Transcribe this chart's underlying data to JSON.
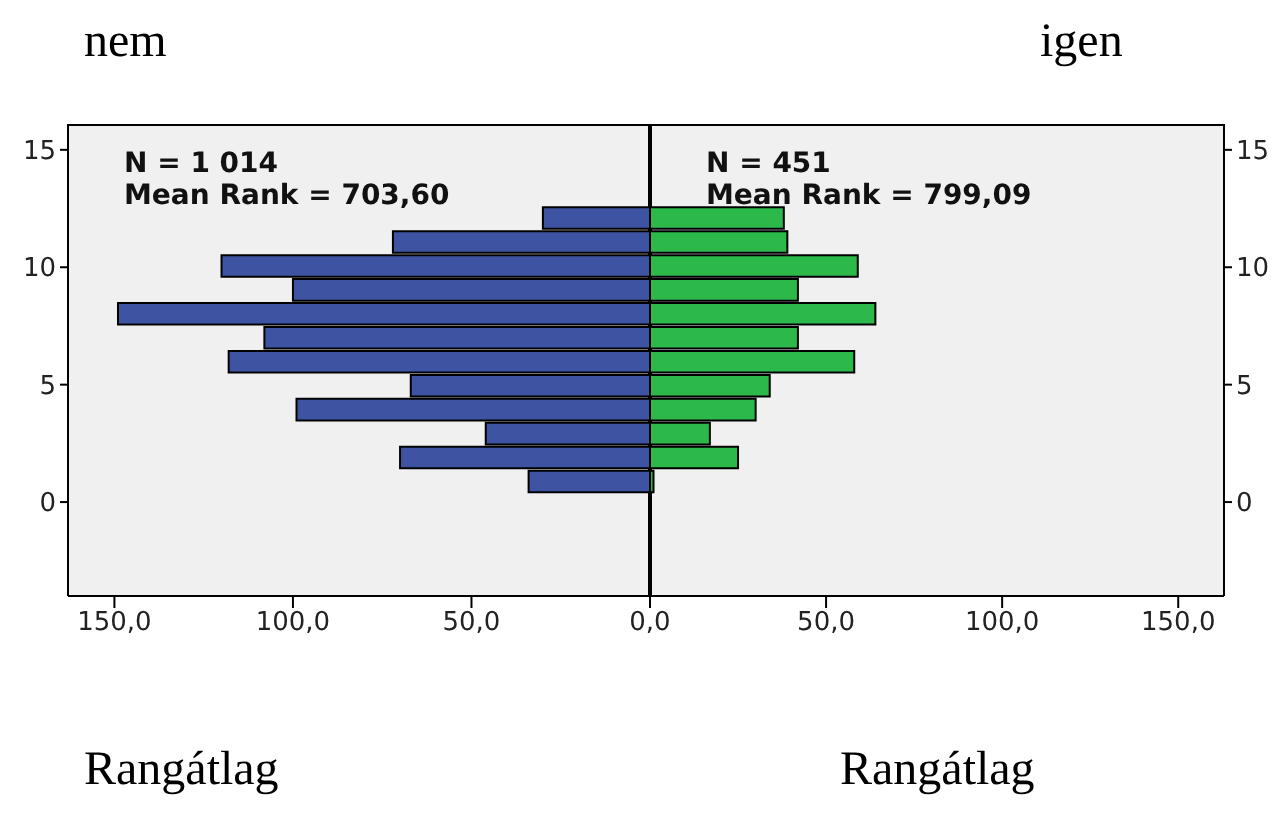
{
  "chart_data": [
    {
      "type": "histogram",
      "title": "nem",
      "xlabel": "Rangátlag",
      "orientation": "horizontal",
      "color": "#3e54a3",
      "bins": [
        0.4,
        1.42,
        2.44,
        3.46,
        4.48,
        5.5,
        6.52,
        7.54,
        8.56,
        9.58,
        10.6,
        11.62,
        12.64
      ],
      "values": [
        34,
        70,
        46,
        99,
        67,
        118,
        108,
        149,
        100,
        120,
        72,
        30
      ],
      "xlim": [
        163,
        0
      ],
      "xticks": [
        {
          "value": 150,
          "label": "150,0"
        },
        {
          "value": 100,
          "label": "100,0"
        },
        {
          "value": 50,
          "label": "50,0"
        },
        {
          "value": 0,
          "label": null
        }
      ],
      "ylim": [
        -4,
        16.1
      ],
      "yticks": [
        0,
        5,
        10,
        15
      ],
      "annotations": [
        "N = 1 014",
        "Mean Rank = 703,60"
      ]
    },
    {
      "type": "histogram",
      "title": "igen",
      "xlabel": "Rangátlag",
      "orientation": "horizontal",
      "color": "#2db84a",
      "bins": [
        0.4,
        1.42,
        2.44,
        3.46,
        4.48,
        5.5,
        6.52,
        7.54,
        8.56,
        9.58,
        10.6,
        11.62,
        12.64
      ],
      "values": [
        1,
        25,
        17,
        30,
        34,
        58,
        42,
        64,
        42,
        59,
        39,
        38
      ],
      "xlim": [
        0,
        163
      ],
      "xticks": [
        {
          "value": 0,
          "label": "0,0"
        },
        {
          "value": 50,
          "label": "50,0"
        },
        {
          "value": 100,
          "label": "100,0"
        },
        {
          "value": 150,
          "label": "150,0"
        }
      ],
      "ylim": [
        -4,
        16.1
      ],
      "yticks": [
        0,
        5,
        10,
        15
      ],
      "annotations": [
        "N = 451",
        "Mean Rank = 799,09"
      ]
    }
  ]
}
